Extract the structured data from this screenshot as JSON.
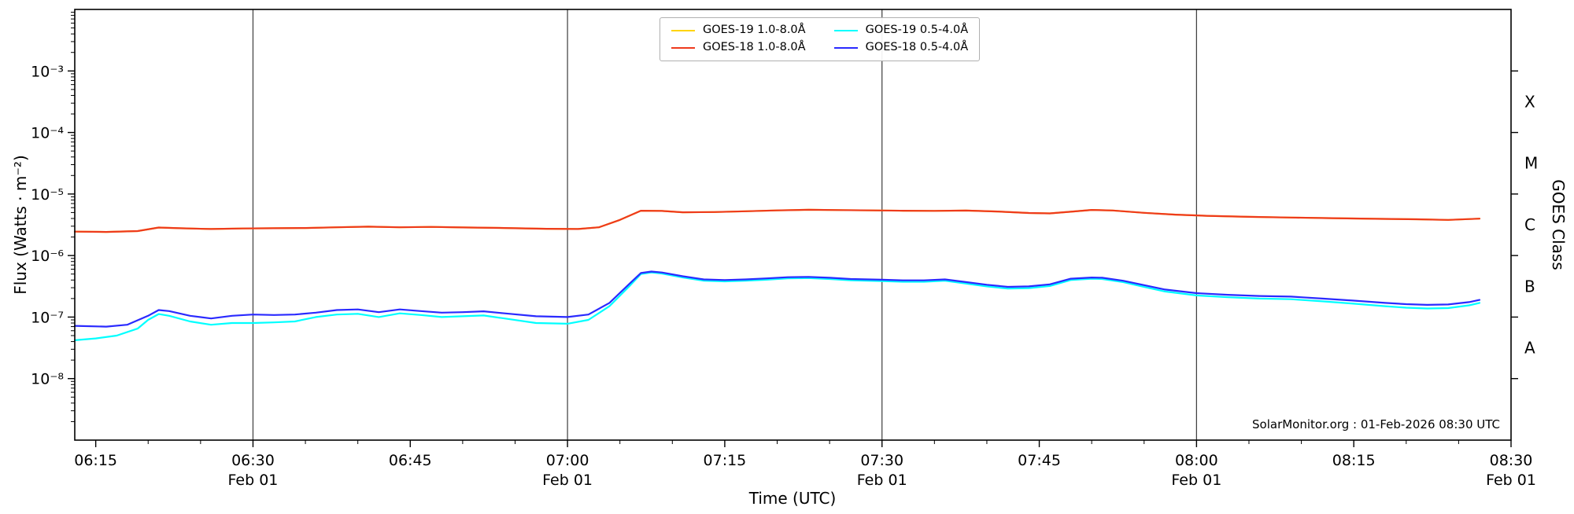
{
  "chart_data": {
    "type": "line",
    "title": "",
    "xlabel": "Time (UTC)",
    "ylabel": "Flux (Watts · m⁻²)",
    "ylabel_right": "GOES Class",
    "annotation": "SolarMonitor.org : 01-Feb-2026 08:30 UTC",
    "grid": "vertical lines at half-hour ticks",
    "legend_position": "top-center",
    "x_axis": {
      "xlim": [
        "06:13",
        "08:30"
      ],
      "minor_tick_minutes": 5,
      "major_ticks": [
        {
          "time": "06:15",
          "label": "06:15",
          "date": "",
          "grid": false
        },
        {
          "time": "06:30",
          "label": "06:30",
          "date": "Feb 01",
          "grid": true
        },
        {
          "time": "06:45",
          "label": "06:45",
          "date": "",
          "grid": false
        },
        {
          "time": "07:00",
          "label": "07:00",
          "date": "Feb 01",
          "grid": true
        },
        {
          "time": "07:15",
          "label": "07:15",
          "date": "",
          "grid": false
        },
        {
          "time": "07:30",
          "label": "07:30",
          "date": "Feb 01",
          "grid": true
        },
        {
          "time": "07:45",
          "label": "07:45",
          "date": "",
          "grid": false
        },
        {
          "time": "08:00",
          "label": "08:00",
          "date": "Feb 01",
          "grid": true
        },
        {
          "time": "08:15",
          "label": "08:15",
          "date": "",
          "grid": false
        },
        {
          "time": "08:30",
          "label": "08:30",
          "date": "Feb 01",
          "grid": false
        }
      ]
    },
    "y_axis": {
      "scale": "log",
      "ylim": [
        1e-09,
        0.01
      ],
      "major_ticks": [
        {
          "value": 0.001,
          "label": "10⁻³"
        },
        {
          "value": 0.0001,
          "label": "10⁻⁴"
        },
        {
          "value": 1e-05,
          "label": "10⁻⁵"
        },
        {
          "value": 1e-06,
          "label": "10⁻⁶"
        },
        {
          "value": 1e-07,
          "label": "10⁻⁷"
        },
        {
          "value": 1e-08,
          "label": "10⁻⁸"
        }
      ]
    },
    "goes_classes": [
      {
        "letter": "X",
        "value": 0.000316
      },
      {
        "letter": "M",
        "value": 3.16e-05
      },
      {
        "letter": "C",
        "value": 3.16e-06
      },
      {
        "letter": "B",
        "value": 3.16e-07
      },
      {
        "letter": "A",
        "value": 3.16e-08
      }
    ],
    "series": [
      {
        "name": "GOES-19 1.0-8.0Å",
        "color": "#ffd400",
        "points": [
          [
            "06:13",
            2.45e-06
          ],
          [
            "06:16",
            2.42e-06
          ],
          [
            "06:19",
            2.5e-06
          ],
          [
            "06:21",
            2.85e-06
          ],
          [
            "06:23",
            2.78e-06
          ],
          [
            "06:26",
            2.7e-06
          ],
          [
            "06:29",
            2.75e-06
          ],
          [
            "06:32",
            2.78e-06
          ],
          [
            "06:35",
            2.8e-06
          ],
          [
            "06:38",
            2.88e-06
          ],
          [
            "06:41",
            2.95e-06
          ],
          [
            "06:44",
            2.88e-06
          ],
          [
            "06:47",
            2.92e-06
          ],
          [
            "06:50",
            2.86e-06
          ],
          [
            "06:54",
            2.8e-06
          ],
          [
            "06:58",
            2.72e-06
          ],
          [
            "07:01",
            2.7e-06
          ],
          [
            "07:03",
            2.88e-06
          ],
          [
            "07:05",
            3.8e-06
          ],
          [
            "07:07",
            5.35e-06
          ],
          [
            "07:09",
            5.3e-06
          ],
          [
            "07:11",
            5.05e-06
          ],
          [
            "07:14",
            5.1e-06
          ],
          [
            "07:17",
            5.25e-06
          ],
          [
            "07:20",
            5.42e-06
          ],
          [
            "07:23",
            5.55e-06
          ],
          [
            "07:26",
            5.48e-06
          ],
          [
            "07:29",
            5.42e-06
          ],
          [
            "07:32",
            5.35e-06
          ],
          [
            "07:35",
            5.32e-06
          ],
          [
            "07:38",
            5.38e-06
          ],
          [
            "07:41",
            5.2e-06
          ],
          [
            "07:44",
            4.92e-06
          ],
          [
            "07:46",
            4.85e-06
          ],
          [
            "07:48",
            5.15e-06
          ],
          [
            "07:50",
            5.52e-06
          ],
          [
            "07:52",
            5.4e-06
          ],
          [
            "07:55",
            4.95e-06
          ],
          [
            "07:58",
            4.62e-06
          ],
          [
            "08:01",
            4.42e-06
          ],
          [
            "08:05",
            4.25e-06
          ],
          [
            "08:09",
            4.15e-06
          ],
          [
            "08:13",
            4.05e-06
          ],
          [
            "08:17",
            3.95e-06
          ],
          [
            "08:21",
            3.88e-06
          ],
          [
            "08:24",
            3.8e-06
          ],
          [
            "08:27",
            3.98e-06
          ]
        ]
      },
      {
        "name": "GOES-18 1.0-8.0Å",
        "color": "#ee3a1d",
        "points": [
          [
            "06:13",
            2.45e-06
          ],
          [
            "06:16",
            2.42e-06
          ],
          [
            "06:19",
            2.5e-06
          ],
          [
            "06:21",
            2.85e-06
          ],
          [
            "06:23",
            2.78e-06
          ],
          [
            "06:26",
            2.7e-06
          ],
          [
            "06:29",
            2.75e-06
          ],
          [
            "06:32",
            2.78e-06
          ],
          [
            "06:35",
            2.8e-06
          ],
          [
            "06:38",
            2.88e-06
          ],
          [
            "06:41",
            2.95e-06
          ],
          [
            "06:44",
            2.88e-06
          ],
          [
            "06:47",
            2.92e-06
          ],
          [
            "06:50",
            2.86e-06
          ],
          [
            "06:54",
            2.8e-06
          ],
          [
            "06:58",
            2.72e-06
          ],
          [
            "07:01",
            2.7e-06
          ],
          [
            "07:03",
            2.88e-06
          ],
          [
            "07:05",
            3.8e-06
          ],
          [
            "07:07",
            5.35e-06
          ],
          [
            "07:09",
            5.3e-06
          ],
          [
            "07:11",
            5.05e-06
          ],
          [
            "07:14",
            5.1e-06
          ],
          [
            "07:17",
            5.25e-06
          ],
          [
            "07:20",
            5.42e-06
          ],
          [
            "07:23",
            5.55e-06
          ],
          [
            "07:26",
            5.48e-06
          ],
          [
            "07:29",
            5.42e-06
          ],
          [
            "07:32",
            5.35e-06
          ],
          [
            "07:35",
            5.32e-06
          ],
          [
            "07:38",
            5.38e-06
          ],
          [
            "07:41",
            5.2e-06
          ],
          [
            "07:44",
            4.92e-06
          ],
          [
            "07:46",
            4.85e-06
          ],
          [
            "07:48",
            5.15e-06
          ],
          [
            "07:50",
            5.52e-06
          ],
          [
            "07:52",
            5.4e-06
          ],
          [
            "07:55",
            4.95e-06
          ],
          [
            "07:58",
            4.62e-06
          ],
          [
            "08:01",
            4.42e-06
          ],
          [
            "08:05",
            4.25e-06
          ],
          [
            "08:09",
            4.15e-06
          ],
          [
            "08:13",
            4.05e-06
          ],
          [
            "08:17",
            3.95e-06
          ],
          [
            "08:21",
            3.88e-06
          ],
          [
            "08:24",
            3.8e-06
          ],
          [
            "08:27",
            3.98e-06
          ]
        ]
      },
      {
        "name": "GOES-19 0.5-4.0Å",
        "color": "#00ffff",
        "points": [
          [
            "06:13",
            4.2e-08
          ],
          [
            "06:15",
            4.5e-08
          ],
          [
            "06:17",
            5e-08
          ],
          [
            "06:19",
            6.5e-08
          ],
          [
            "06:20",
            9e-08
          ],
          [
            "06:21",
            1.12e-07
          ],
          [
            "06:22",
            1.05e-07
          ],
          [
            "06:24",
            8.5e-08
          ],
          [
            "06:26",
            7.5e-08
          ],
          [
            "06:28",
            8e-08
          ],
          [
            "06:30",
            8e-08
          ],
          [
            "06:32",
            8.2e-08
          ],
          [
            "06:34",
            8.5e-08
          ],
          [
            "06:36",
            1e-07
          ],
          [
            "06:38",
            1.1e-07
          ],
          [
            "06:40",
            1.13e-07
          ],
          [
            "06:42",
            1e-07
          ],
          [
            "06:44",
            1.15e-07
          ],
          [
            "06:46",
            1.08e-07
          ],
          [
            "06:48",
            1e-07
          ],
          [
            "06:50",
            1.03e-07
          ],
          [
            "06:52",
            1.06e-07
          ],
          [
            "06:54",
            9.5e-08
          ],
          [
            "06:57",
            8e-08
          ],
          [
            "07:00",
            7.8e-08
          ],
          [
            "07:02",
            9e-08
          ],
          [
            "07:04",
            1.5e-07
          ],
          [
            "07:06",
            3.3e-07
          ],
          [
            "07:07",
            5e-07
          ],
          [
            "07:08",
            5.3e-07
          ],
          [
            "07:09",
            5.1e-07
          ],
          [
            "07:11",
            4.4e-07
          ],
          [
            "07:13",
            3.9e-07
          ],
          [
            "07:15",
            3.8e-07
          ],
          [
            "07:17",
            3.9e-07
          ],
          [
            "07:19",
            4.05e-07
          ],
          [
            "07:21",
            4.25e-07
          ],
          [
            "07:23",
            4.3e-07
          ],
          [
            "07:25",
            4.15e-07
          ],
          [
            "07:27",
            3.95e-07
          ],
          [
            "07:30",
            3.85e-07
          ],
          [
            "07:32",
            3.75e-07
          ],
          [
            "07:34",
            3.75e-07
          ],
          [
            "07:36",
            3.9e-07
          ],
          [
            "07:38",
            3.5e-07
          ],
          [
            "07:40",
            3.15e-07
          ],
          [
            "07:42",
            2.9e-07
          ],
          [
            "07:44",
            2.95e-07
          ],
          [
            "07:46",
            3.2e-07
          ],
          [
            "07:48",
            4e-07
          ],
          [
            "07:50",
            4.2e-07
          ],
          [
            "07:51",
            4.15e-07
          ],
          [
            "07:53",
            3.7e-07
          ],
          [
            "07:55",
            3.1e-07
          ],
          [
            "07:57",
            2.6e-07
          ],
          [
            "08:00",
            2.25e-07
          ],
          [
            "08:03",
            2.1e-07
          ],
          [
            "08:06",
            2e-07
          ],
          [
            "08:09",
            1.95e-07
          ],
          [
            "08:12",
            1.8e-07
          ],
          [
            "08:15",
            1.65e-07
          ],
          [
            "08:18",
            1.5e-07
          ],
          [
            "08:20",
            1.42e-07
          ],
          [
            "08:22",
            1.38e-07
          ],
          [
            "08:24",
            1.4e-07
          ],
          [
            "08:26",
            1.55e-07
          ],
          [
            "08:27",
            1.7e-07
          ]
        ]
      },
      {
        "name": "GOES-18 0.5-4.0Å",
        "color": "#2a2aff",
        "points": [
          [
            "06:13",
            7.2e-08
          ],
          [
            "06:16",
            7e-08
          ],
          [
            "06:18",
            7.5e-08
          ],
          [
            "06:20",
            1.05e-07
          ],
          [
            "06:21",
            1.3e-07
          ],
          [
            "06:22",
            1.25e-07
          ],
          [
            "06:24",
            1.05e-07
          ],
          [
            "06:26",
            9.5e-08
          ],
          [
            "06:28",
            1.05e-07
          ],
          [
            "06:30",
            1.1e-07
          ],
          [
            "06:32",
            1.08e-07
          ],
          [
            "06:34",
            1.1e-07
          ],
          [
            "06:36",
            1.18e-07
          ],
          [
            "06:38",
            1.3e-07
          ],
          [
            "06:40",
            1.33e-07
          ],
          [
            "06:42",
            1.2e-07
          ],
          [
            "06:44",
            1.33e-07
          ],
          [
            "06:46",
            1.25e-07
          ],
          [
            "06:48",
            1.18e-07
          ],
          [
            "06:50",
            1.2e-07
          ],
          [
            "06:52",
            1.24e-07
          ],
          [
            "06:54",
            1.15e-07
          ],
          [
            "06:57",
            1.03e-07
          ],
          [
            "07:00",
            1e-07
          ],
          [
            "07:02",
            1.1e-07
          ],
          [
            "07:04",
            1.7e-07
          ],
          [
            "07:06",
            3.6e-07
          ],
          [
            "07:07",
            5.2e-07
          ],
          [
            "07:08",
            5.5e-07
          ],
          [
            "07:09",
            5.3e-07
          ],
          [
            "07:11",
            4.6e-07
          ],
          [
            "07:13",
            4.1e-07
          ],
          [
            "07:15",
            4e-07
          ],
          [
            "07:17",
            4.1e-07
          ],
          [
            "07:19",
            4.25e-07
          ],
          [
            "07:21",
            4.45e-07
          ],
          [
            "07:23",
            4.5e-07
          ],
          [
            "07:25",
            4.35e-07
          ],
          [
            "07:27",
            4.15e-07
          ],
          [
            "07:30",
            4.05e-07
          ],
          [
            "07:32",
            3.95e-07
          ],
          [
            "07:34",
            3.95e-07
          ],
          [
            "07:36",
            4.1e-07
          ],
          [
            "07:38",
            3.7e-07
          ],
          [
            "07:40",
            3.35e-07
          ],
          [
            "07:42",
            3.1e-07
          ],
          [
            "07:44",
            3.15e-07
          ],
          [
            "07:46",
            3.4e-07
          ],
          [
            "07:48",
            4.2e-07
          ],
          [
            "07:50",
            4.4e-07
          ],
          [
            "07:51",
            4.35e-07
          ],
          [
            "07:53",
            3.9e-07
          ],
          [
            "07:55",
            3.3e-07
          ],
          [
            "07:57",
            2.8e-07
          ],
          [
            "08:00",
            2.45e-07
          ],
          [
            "08:03",
            2.3e-07
          ],
          [
            "08:06",
            2.2e-07
          ],
          [
            "08:09",
            2.15e-07
          ],
          [
            "08:12",
            2e-07
          ],
          [
            "08:15",
            1.85e-07
          ],
          [
            "08:18",
            1.7e-07
          ],
          [
            "08:20",
            1.62e-07
          ],
          [
            "08:22",
            1.58e-07
          ],
          [
            "08:24",
            1.6e-07
          ],
          [
            "08:26",
            1.75e-07
          ],
          [
            "08:27",
            1.9e-07
          ]
        ]
      }
    ]
  }
}
